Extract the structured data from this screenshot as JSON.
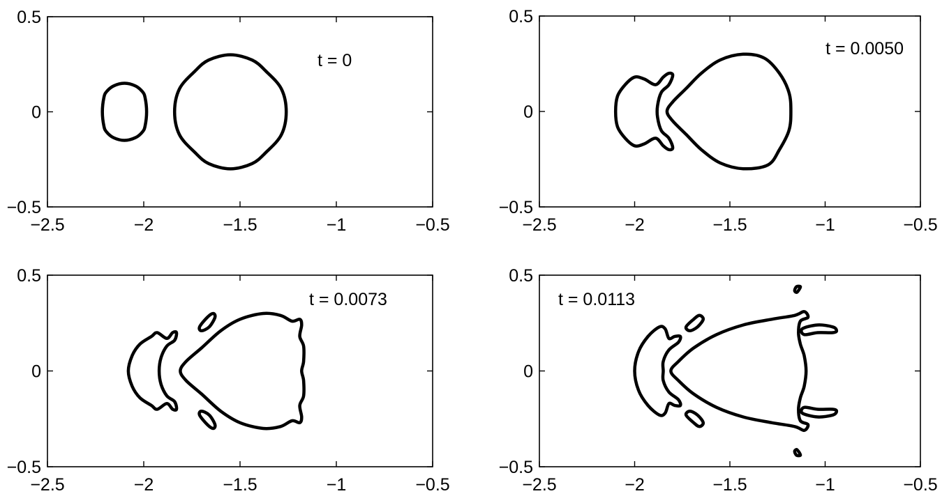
{
  "chart_data": [
    {
      "type": "line",
      "annotation": "t = 0",
      "xlim": [
        -2.5,
        -0.5
      ],
      "ylim": [
        -0.5,
        0.5
      ],
      "xticks": [
        "−2.5",
        "−2",
        "−1.5",
        "−1",
        "−0.5"
      ],
      "yticks": [
        "−0.5",
        "0",
        "0.5"
      ],
      "curves": [
        [
          [
            -2.1,
            0.15
          ],
          [
            -2.043,
            0.136
          ],
          [
            -2.007,
            0.106
          ],
          [
            -1.993,
            0.075
          ],
          [
            -1.985,
            0.0
          ],
          [
            -1.993,
            -0.075
          ],
          [
            -2.007,
            -0.106
          ],
          [
            -2.043,
            -0.136
          ],
          [
            -2.1,
            -0.15
          ],
          [
            -2.157,
            -0.136
          ],
          [
            -2.193,
            -0.106
          ],
          [
            -2.207,
            -0.075
          ],
          [
            -2.215,
            0.0
          ],
          [
            -2.207,
            0.075
          ],
          [
            -2.193,
            0.106
          ],
          [
            -2.157,
            0.136
          ]
        ],
        [
          [
            -1.55,
            0.3
          ],
          [
            -1.437,
            0.272
          ],
          [
            -1.364,
            0.212
          ],
          [
            -1.285,
            0.12
          ],
          [
            -1.26,
            0.0
          ],
          [
            -1.285,
            -0.12
          ],
          [
            -1.364,
            -0.212
          ],
          [
            -1.437,
            -0.272
          ],
          [
            -1.55,
            -0.3
          ],
          [
            -1.663,
            -0.272
          ],
          [
            -1.736,
            -0.212
          ],
          [
            -1.815,
            -0.12
          ],
          [
            -1.84,
            0.0
          ],
          [
            -1.815,
            0.12
          ],
          [
            -1.736,
            0.212
          ],
          [
            -1.663,
            0.272
          ]
        ]
      ]
    },
    {
      "type": "line",
      "annotation": "t = 0.0050",
      "xlim": [
        -2.5,
        -0.5
      ],
      "ylim": [
        -0.5,
        0.5
      ],
      "xticks": [
        "−2.5",
        "−2",
        "−1.5",
        "−1",
        "−0.5"
      ],
      "yticks": [
        "−0.5",
        "0",
        "0.5"
      ],
      "curves": [
        [
          [
            -2.1,
            0.0
          ],
          [
            -2.09,
            0.08
          ],
          [
            -2.05,
            0.14
          ],
          [
            -2.0,
            0.18
          ],
          [
            -1.95,
            0.17
          ],
          [
            -1.89,
            0.14
          ],
          [
            -1.85,
            0.18
          ],
          [
            -1.82,
            0.2
          ],
          [
            -1.8,
            0.19
          ],
          [
            -1.82,
            0.14
          ],
          [
            -1.86,
            0.1
          ],
          [
            -1.88,
            0.03
          ],
          [
            -1.88,
            -0.03
          ],
          [
            -1.86,
            -0.1
          ],
          [
            -1.82,
            -0.14
          ],
          [
            -1.8,
            -0.19
          ],
          [
            -1.82,
            -0.2
          ],
          [
            -1.85,
            -0.18
          ],
          [
            -1.89,
            -0.14
          ],
          [
            -1.95,
            -0.17
          ],
          [
            -2.0,
            -0.18
          ],
          [
            -2.05,
            -0.14
          ],
          [
            -2.09,
            -0.08
          ]
        ],
        [
          [
            -1.83,
            0.0
          ],
          [
            -1.8,
            0.05
          ],
          [
            -1.73,
            0.12
          ],
          [
            -1.65,
            0.2
          ],
          [
            -1.55,
            0.27
          ],
          [
            -1.43,
            0.3
          ],
          [
            -1.32,
            0.28
          ],
          [
            -1.24,
            0.2
          ],
          [
            -1.19,
            0.1
          ],
          [
            -1.18,
            0.0
          ],
          [
            -1.19,
            -0.1
          ],
          [
            -1.24,
            -0.2
          ],
          [
            -1.3,
            -0.28
          ],
          [
            -1.43,
            -0.3
          ],
          [
            -1.55,
            -0.27
          ],
          [
            -1.65,
            -0.2
          ],
          [
            -1.73,
            -0.12
          ],
          [
            -1.8,
            -0.05
          ]
        ]
      ]
    },
    {
      "type": "line",
      "annotation": "t = 0.0073",
      "xlim": [
        -2.5,
        -0.5
      ],
      "ylim": [
        -0.5,
        0.5
      ],
      "xticks": [
        "−2.5",
        "−2",
        "−1.5",
        "−1",
        "−0.5"
      ],
      "yticks": [
        "−0.5",
        "0",
        "0.5"
      ],
      "curves": [
        [
          [
            -2.08,
            0.0
          ],
          [
            -2.06,
            0.08
          ],
          [
            -2.02,
            0.14
          ],
          [
            -1.96,
            0.18
          ],
          [
            -1.93,
            0.2
          ],
          [
            -1.88,
            0.17
          ],
          [
            -1.85,
            0.2
          ],
          [
            -1.83,
            0.2
          ],
          [
            -1.84,
            0.16
          ],
          [
            -1.88,
            0.13
          ],
          [
            -1.91,
            0.07
          ],
          [
            -1.92,
            0.0
          ],
          [
            -1.91,
            -0.07
          ],
          [
            -1.88,
            -0.13
          ],
          [
            -1.84,
            -0.16
          ],
          [
            -1.83,
            -0.2
          ],
          [
            -1.85,
            -0.2
          ],
          [
            -1.88,
            -0.17
          ],
          [
            -1.93,
            -0.2
          ],
          [
            -1.96,
            -0.18
          ],
          [
            -2.02,
            -0.14
          ],
          [
            -2.06,
            -0.08
          ]
        ],
        [
          [
            -1.81,
            0.0
          ],
          [
            -1.78,
            0.05
          ],
          [
            -1.7,
            0.12
          ],
          [
            -1.6,
            0.21
          ],
          [
            -1.5,
            0.27
          ],
          [
            -1.38,
            0.3
          ],
          [
            -1.29,
            0.29
          ],
          [
            -1.23,
            0.26
          ],
          [
            -1.19,
            0.27
          ],
          [
            -1.18,
            0.24
          ],
          [
            -1.19,
            0.18
          ],
          [
            -1.17,
            0.13
          ],
          [
            -1.17,
            0.05
          ],
          [
            -1.18,
            0.0
          ],
          [
            -1.17,
            -0.05
          ],
          [
            -1.17,
            -0.13
          ],
          [
            -1.19,
            -0.18
          ],
          [
            -1.18,
            -0.24
          ],
          [
            -1.19,
            -0.27
          ],
          [
            -1.23,
            -0.26
          ],
          [
            -1.29,
            -0.29
          ],
          [
            -1.38,
            -0.3
          ],
          [
            -1.5,
            -0.27
          ],
          [
            -1.6,
            -0.21
          ],
          [
            -1.7,
            -0.12
          ],
          [
            -1.78,
            -0.05
          ]
        ],
        [
          [
            -1.67,
            0.28
          ],
          [
            -1.64,
            0.3
          ],
          [
            -1.63,
            0.28
          ],
          [
            -1.66,
            0.23
          ],
          [
            -1.7,
            0.21
          ],
          [
            -1.71,
            0.23
          ]
        ],
        [
          [
            -1.67,
            -0.28
          ],
          [
            -1.64,
            -0.3
          ],
          [
            -1.63,
            -0.28
          ],
          [
            -1.66,
            -0.23
          ],
          [
            -1.7,
            -0.21
          ],
          [
            -1.71,
            -0.23
          ]
        ]
      ]
    },
    {
      "type": "line",
      "annotation": "t = 0.0113",
      "xlim": [
        -2.5,
        -0.5
      ],
      "ylim": [
        -0.5,
        0.5
      ],
      "xticks": [
        "−2.5",
        "−2",
        "−1.5",
        "−1",
        "−0.5"
      ],
      "yticks": [
        "−0.5",
        "0",
        "0.5"
      ],
      "curves": [
        [
          [
            -2.0,
            0.0
          ],
          [
            -1.98,
            0.1
          ],
          [
            -1.93,
            0.18
          ],
          [
            -1.87,
            0.23
          ],
          [
            -1.84,
            0.22
          ],
          [
            -1.82,
            0.17
          ],
          [
            -1.79,
            0.18
          ],
          [
            -1.76,
            0.18
          ],
          [
            -1.77,
            0.15
          ],
          [
            -1.82,
            0.11
          ],
          [
            -1.85,
            0.05
          ],
          [
            -1.85,
            0.0
          ],
          [
            -1.85,
            -0.05
          ],
          [
            -1.82,
            -0.11
          ],
          [
            -1.77,
            -0.15
          ],
          [
            -1.76,
            -0.18
          ],
          [
            -1.79,
            -0.18
          ],
          [
            -1.82,
            -0.17
          ],
          [
            -1.84,
            -0.22
          ],
          [
            -1.87,
            -0.23
          ],
          [
            -1.93,
            -0.18
          ],
          [
            -1.98,
            -0.1
          ]
        ],
        [
          [
            -1.81,
            0.0
          ],
          [
            -1.77,
            0.05
          ],
          [
            -1.69,
            0.12
          ],
          [
            -1.57,
            0.19
          ],
          [
            -1.43,
            0.24
          ],
          [
            -1.28,
            0.27
          ],
          [
            -1.16,
            0.29
          ],
          [
            -1.11,
            0.31
          ],
          [
            -1.09,
            0.28
          ],
          [
            -1.13,
            0.26
          ],
          [
            -1.14,
            0.2
          ],
          [
            -1.13,
            0.14
          ],
          [
            -1.11,
            0.08
          ],
          [
            -1.1,
            0.0
          ],
          [
            -1.11,
            -0.08
          ],
          [
            -1.13,
            -0.14
          ],
          [
            -1.14,
            -0.2
          ],
          [
            -1.13,
            -0.26
          ],
          [
            -1.09,
            -0.28
          ],
          [
            -1.11,
            -0.31
          ],
          [
            -1.16,
            -0.29
          ],
          [
            -1.28,
            -0.27
          ],
          [
            -1.43,
            -0.24
          ],
          [
            -1.57,
            -0.19
          ],
          [
            -1.69,
            -0.12
          ],
          [
            -1.77,
            -0.05
          ]
        ],
        [
          [
            -1.12,
            0.22
          ],
          [
            -1.04,
            0.24
          ],
          [
            -0.96,
            0.23
          ],
          [
            -0.94,
            0.21
          ],
          [
            -0.96,
            0.2
          ],
          [
            -1.04,
            0.2
          ],
          [
            -1.11,
            0.19
          ]
        ],
        [
          [
            -1.12,
            -0.22
          ],
          [
            -1.04,
            -0.24
          ],
          [
            -0.96,
            -0.23
          ],
          [
            -0.94,
            -0.21
          ],
          [
            -0.96,
            -0.2
          ],
          [
            -1.04,
            -0.2
          ],
          [
            -1.11,
            -0.19
          ]
        ],
        [
          [
            -1.69,
            0.27
          ],
          [
            -1.66,
            0.29
          ],
          [
            -1.64,
            0.27
          ],
          [
            -1.67,
            0.23
          ],
          [
            -1.71,
            0.21
          ],
          [
            -1.73,
            0.23
          ]
        ],
        [
          [
            -1.69,
            -0.27
          ],
          [
            -1.66,
            -0.29
          ],
          [
            -1.64,
            -0.27
          ],
          [
            -1.67,
            -0.23
          ],
          [
            -1.71,
            -0.21
          ],
          [
            -1.73,
            -0.23
          ]
        ],
        [
          [
            -1.14,
            0.42
          ],
          [
            -1.13,
            0.44
          ],
          [
            -1.15,
            0.44
          ],
          [
            -1.16,
            0.42
          ],
          [
            -1.15,
            0.41
          ]
        ],
        [
          [
            -1.14,
            -0.42
          ],
          [
            -1.13,
            -0.44
          ],
          [
            -1.15,
            -0.44
          ],
          [
            -1.16,
            -0.42
          ],
          [
            -1.15,
            -0.41
          ]
        ]
      ]
    }
  ]
}
